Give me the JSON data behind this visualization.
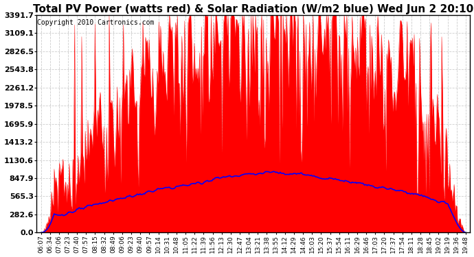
{
  "title": "Total PV Power (watts red) & Solar Radiation (W/m2 blue) Wed Jun 2 20:10",
  "copyright": "Copyright 2010 Cartronics.com",
  "yticks": [
    0.0,
    282.6,
    565.3,
    847.9,
    1130.6,
    1413.2,
    1695.9,
    1978.5,
    2261.2,
    2543.8,
    2826.5,
    3109.1,
    3391.7
  ],
  "ylim": [
    0.0,
    3391.7
  ],
  "bg_color": "#ffffff",
  "plot_bg_color": "#ffffff",
  "grid_color": "#cccccc",
  "red_color": "#ff0000",
  "blue_color": "#0000ff",
  "title_fontsize": 11,
  "copyright_fontsize": 7,
  "xtick_fontsize": 6.5,
  "ytick_fontsize": 8,
  "xtick_labels": [
    "06:07",
    "06:34",
    "07:06",
    "07:23",
    "07:40",
    "07:57",
    "08:15",
    "08:32",
    "08:49",
    "09:06",
    "09:23",
    "09:40",
    "09:57",
    "10:14",
    "10:31",
    "10:48",
    "11:05",
    "11:22",
    "11:39",
    "11:56",
    "12:13",
    "12:30",
    "12:47",
    "13:04",
    "13:21",
    "13:38",
    "13:55",
    "14:12",
    "14:29",
    "14:46",
    "15:03",
    "15:20",
    "15:37",
    "15:54",
    "16:11",
    "16:29",
    "16:46",
    "17:03",
    "17:20",
    "17:37",
    "17:54",
    "18:11",
    "18:28",
    "18:45",
    "19:02",
    "19:19",
    "19:36",
    "19:48"
  ]
}
